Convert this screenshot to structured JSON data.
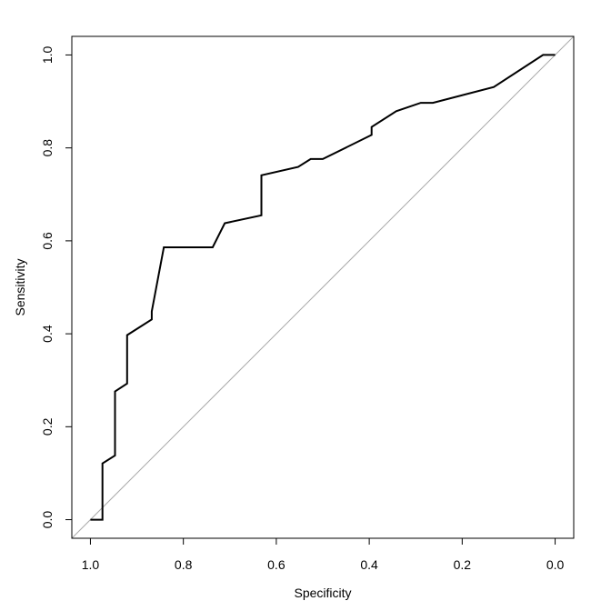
{
  "chart_data": {
    "type": "line",
    "title": "",
    "xlabel": "Specificity",
    "ylabel": "Sensitivity",
    "x_reversed": true,
    "xlim": [
      1.04,
      -0.04
    ],
    "ylim": [
      -0.04,
      1.04
    ],
    "x_ticks": [
      1.0,
      0.8,
      0.6,
      0.4,
      0.2,
      0.0
    ],
    "x_tick_labels": [
      "1.0",
      "0.8",
      "0.6",
      "0.4",
      "0.2",
      "0.0"
    ],
    "y_ticks": [
      0.0,
      0.2,
      0.4,
      0.6,
      0.8,
      1.0
    ],
    "y_tick_labels": [
      "0.0",
      "0.2",
      "0.4",
      "0.6",
      "0.8",
      "1.0"
    ],
    "grid": false,
    "legend": "none",
    "reference_line": {
      "from": [
        1.0,
        0.0
      ],
      "to": [
        0.0,
        1.0
      ],
      "color": "#aaaaaa"
    },
    "series": [
      {
        "color": "#000000",
        "x": [
          1.0,
          0.974,
          0.974,
          0.947,
          0.947,
          0.921,
          0.921,
          0.868,
          0.868,
          0.842,
          0.737,
          0.711,
          0.632,
          0.632,
          0.553,
          0.526,
          0.5,
          0.395,
          0.395,
          0.342,
          0.289,
          0.263,
          0.132,
          0.026,
          0.0
        ],
        "y": [
          0.0,
          0.0,
          0.121,
          0.138,
          0.276,
          0.293,
          0.397,
          0.431,
          0.448,
          0.586,
          0.586,
          0.638,
          0.655,
          0.741,
          0.759,
          0.776,
          0.776,
          0.828,
          0.845,
          0.879,
          0.897,
          0.897,
          0.931,
          1.0,
          1.0
        ]
      }
    ]
  }
}
